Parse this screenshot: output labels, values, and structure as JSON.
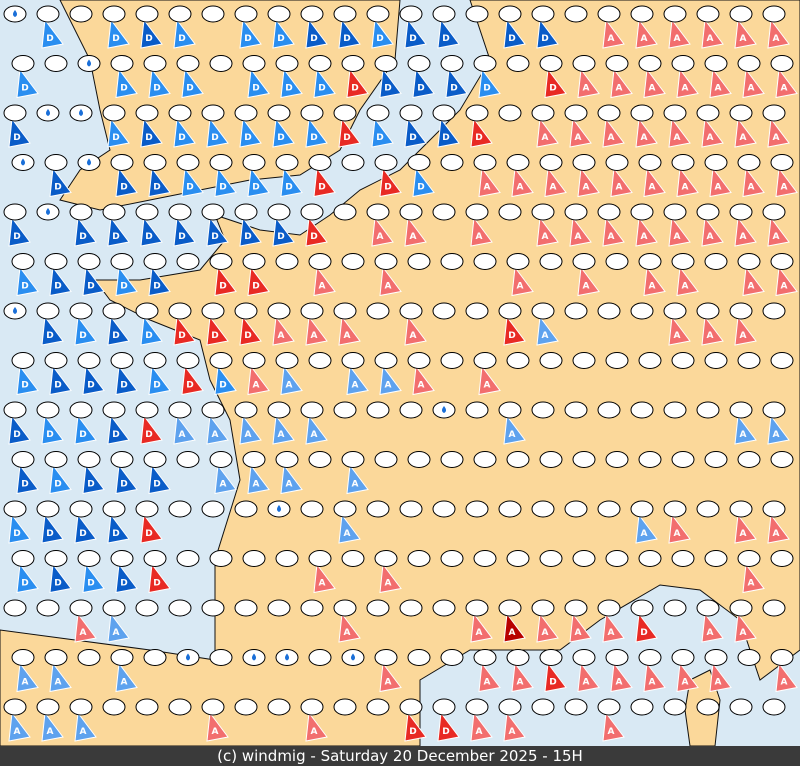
{
  "footer": {
    "text": "(c) windmig - Saturday 20 December 2025 - 15H"
  },
  "colors": {
    "land": "#fbd89a",
    "sea": "#d9e9f4",
    "border": "#111111"
  },
  "legend_codes": {
    ".": "plain",
    "w": "rain-drop",
    "D": {
      "letter": "D",
      "color": "#0a5cc8"
    },
    "d": {
      "letter": "D",
      "color": "#2a8ef0"
    },
    "r": {
      "letter": "D",
      "color": "#e82a24"
    },
    "R": {
      "letter": "A",
      "color": "#b80000"
    },
    "a": {
      "letter": "A",
      "color": "#f26e6e"
    },
    "b": {
      "letter": "A",
      "color": "#5ea2ee"
    }
  },
  "symbol_rows": [
    "wd.dDd.ddDDdDD.DD.aaaaaa",
    "d.wddd.dddrDDDd.raaaaaaa",
    "DwwdDdddddrdDDr.aaaaaaaa",
    "wDwDDddddr.rd.aaaaaaaaaa",
    "DwDDDDDDDr.aa.a.aaaaaaaa",
    "dDDdD.rr.a.a...a.a.aa.aa",
    "wDdDdrrraaa.a..rb...aaa.",
    "dDDDdrdab.bba.a.........",
    "DddDrbbbbb...w.b......bb",
    "DdDDD.bbb.b.............",
    "dDDDr...w.b........ba.aa",
    "dDdDr....a.a..........a.",
    "..ab......a...aRaaar.aa.",
    "bb.b.w.ww.wa..aaraaaaa.a",
    "bbb...a..a..rraa..a....."
  ]
}
